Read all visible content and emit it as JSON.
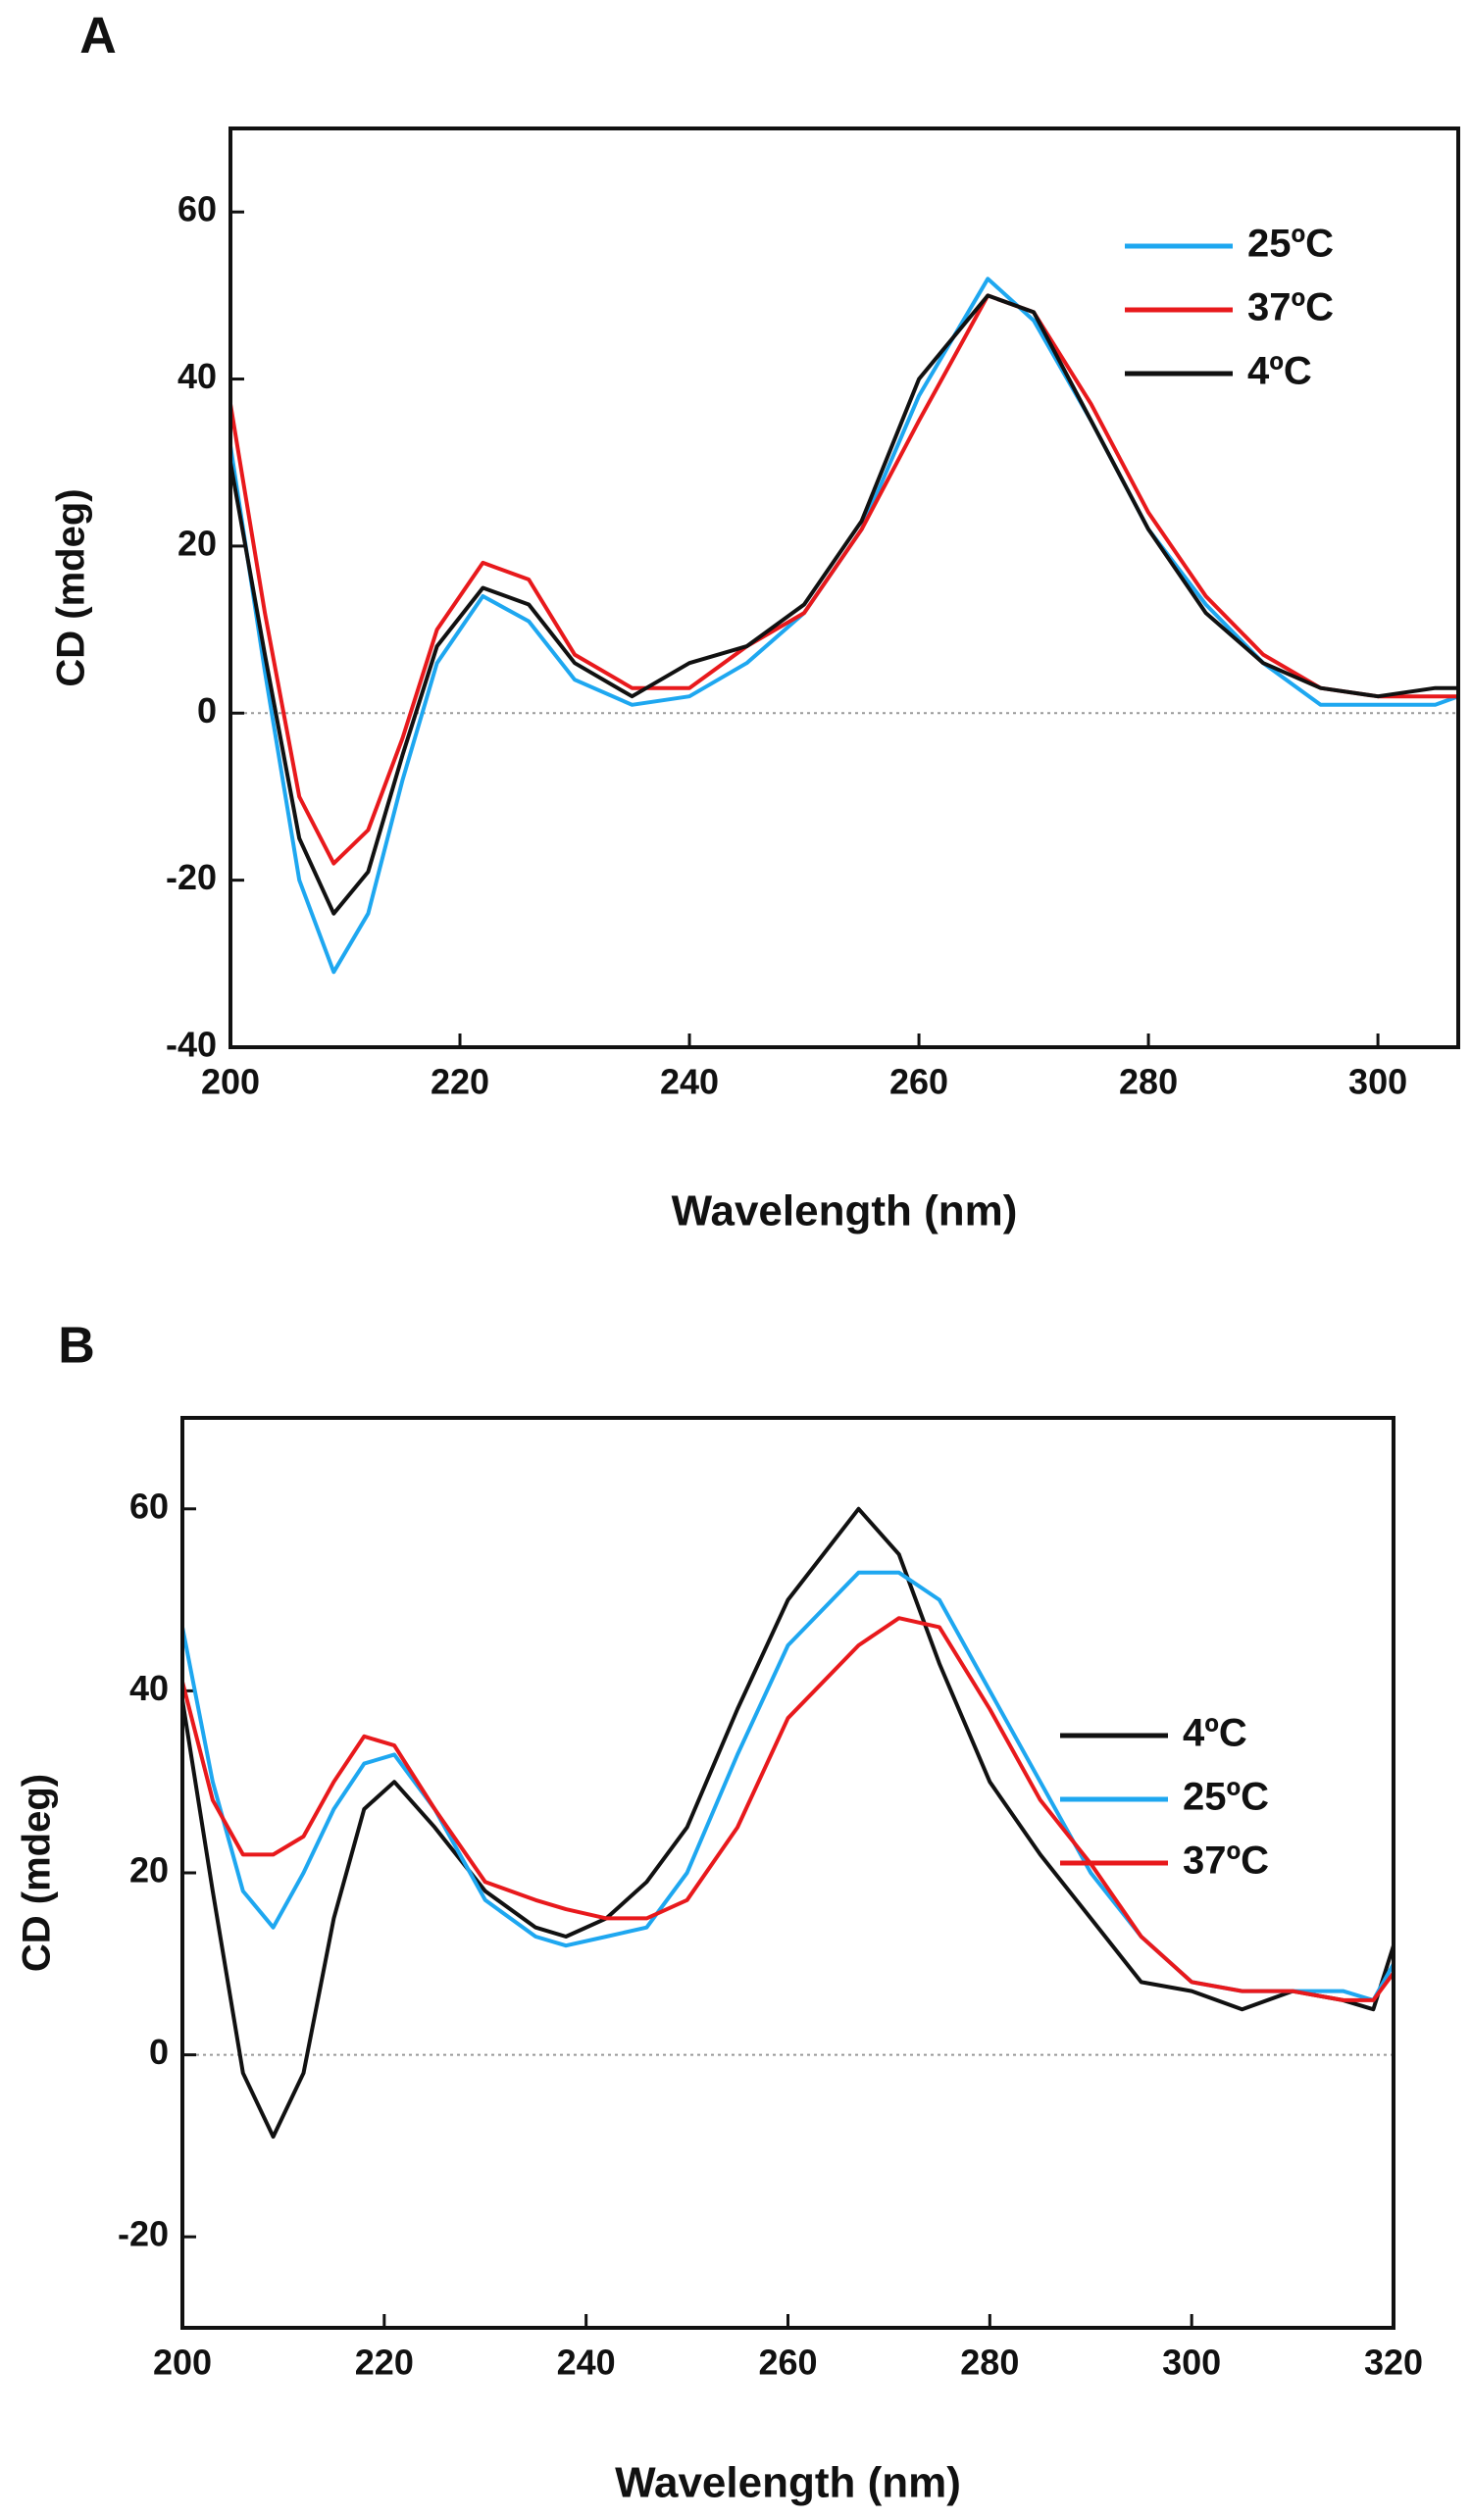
{
  "chart_data": [
    {
      "type": "line",
      "panel_label": "A",
      "x_label": "Wavelength (nm)",
      "y_label": "CD (mdeg)",
      "x": [
        200,
        203,
        206,
        209,
        212,
        215,
        218,
        222,
        226,
        230,
        235,
        240,
        245,
        250,
        255,
        260,
        266,
        270,
        275,
        280,
        285,
        290,
        295,
        300,
        305,
        307
      ],
      "series": [
        {
          "name": "25ºC",
          "color": "#1ea7f0",
          "values": [
            32,
            5,
            -20,
            -31,
            -24,
            -8,
            6,
            14,
            11,
            4,
            1,
            2,
            6,
            12,
            22,
            38,
            52,
            47,
            35,
            22,
            13,
            6,
            1,
            1,
            1,
            2
          ]
        },
        {
          "name": "37ºC",
          "color": "#e8191c",
          "values": [
            37,
            12,
            -10,
            -18,
            -14,
            -3,
            10,
            18,
            16,
            7,
            3,
            3,
            8,
            12,
            22,
            35,
            50,
            48,
            37,
            24,
            14,
            7,
            3,
            2,
            2,
            2
          ]
        },
        {
          "name": "4ºC",
          "color": "#111111",
          "values": [
            30,
            7,
            -15,
            -24,
            -19,
            -5,
            8,
            15,
            13,
            6,
            2,
            6,
            8,
            13,
            23,
            40,
            50,
            48,
            35,
            22,
            12,
            6,
            3,
            2,
            3,
            3
          ]
        }
      ],
      "xlim": [
        200,
        307
      ],
      "xticks": [
        200,
        220,
        240,
        260,
        280,
        300
      ],
      "ylim": [
        -40,
        70
      ],
      "yticks": [
        -40,
        -20,
        0,
        20,
        40,
        60
      ],
      "zero_line": true,
      "legend": "upper right"
    },
    {
      "type": "line",
      "panel_label": "B",
      "x_label": "Wavelength (nm)",
      "y_label": "CD (mdeg)",
      "x": [
        200,
        203,
        206,
        209,
        212,
        215,
        218,
        221,
        225,
        230,
        235,
        238,
        242,
        246,
        250,
        255,
        260,
        267,
        271,
        275,
        280,
        285,
        290,
        295,
        300,
        305,
        310,
        315,
        318,
        320
      ],
      "series": [
        {
          "name": "4ºC",
          "color": "#111111",
          "values": [
            39,
            18,
            -2,
            -9,
            -2,
            15,
            27,
            30,
            25,
            18,
            14,
            13,
            15,
            19,
            25,
            38,
            50,
            60,
            55,
            43,
            30,
            22,
            15,
            8,
            7,
            5,
            7,
            6,
            5,
            12
          ]
        },
        {
          "name": "25ºC",
          "color": "#1ea7f0",
          "values": [
            47,
            30,
            18,
            14,
            20,
            27,
            32,
            33,
            27,
            17,
            13,
            12,
            13,
            14,
            20,
            33,
            45,
            53,
            53,
            50,
            40,
            30,
            20,
            13,
            8,
            7,
            7,
            7,
            6,
            10
          ]
        },
        {
          "name": "37ºC",
          "color": "#e8191c",
          "values": [
            41,
            28,
            22,
            22,
            24,
            30,
            35,
            34,
            27,
            19,
            17,
            16,
            15,
            15,
            17,
            25,
            37,
            45,
            48,
            47,
            38,
            28,
            21,
            13,
            8,
            7,
            7,
            6,
            6,
            9
          ]
        }
      ],
      "xlim": [
        200,
        320
      ],
      "xticks": [
        200,
        220,
        240,
        260,
        280,
        300,
        320
      ],
      "ylim": [
        -30,
        70
      ],
      "yticks": [
        -20,
        0,
        20,
        40,
        60
      ],
      "zero_line": true,
      "legend": "center right"
    }
  ]
}
